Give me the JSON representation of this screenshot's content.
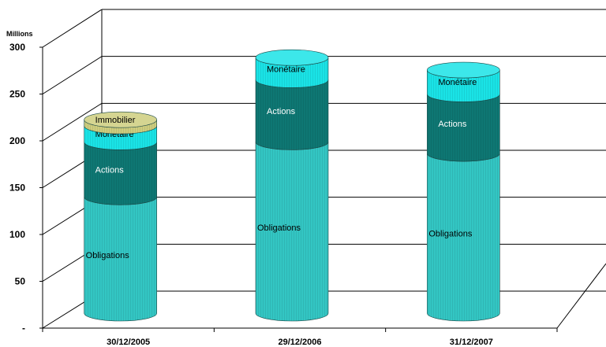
{
  "chart_data": {
    "type": "bar",
    "stacked": true,
    "style": "3d-cylinder",
    "unit_label": "Millions",
    "categories": [
      "30/12/2005",
      "29/12/2006",
      "31/12/2007"
    ],
    "series": [
      {
        "name": "Obligations",
        "values": [
          131,
          193,
          180
        ],
        "color": "#33c6c3"
      },
      {
        "name": "Actions",
        "values": [
          62,
          70,
          67
        ],
        "color": "#0e7773"
      },
      {
        "name": "Monétaire",
        "values": [
          18,
          25,
          27
        ],
        "color": "#1ae3e6"
      },
      {
        "name": "Immobilier",
        "values": [
          7,
          0,
          0
        ],
        "color": "#cdcd7e"
      }
    ],
    "y_ticks": [
      "-",
      "50",
      "100",
      "150",
      "200",
      "250",
      "300"
    ],
    "ylim": [
      0,
      300
    ],
    "grid": true,
    "legend": "none"
  }
}
